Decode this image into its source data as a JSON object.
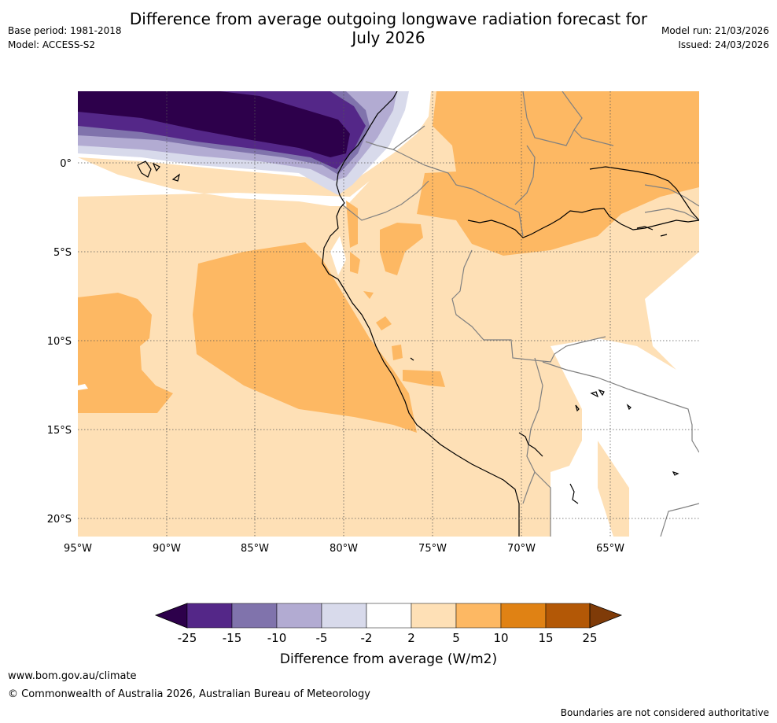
{
  "header": {
    "title_line1": "Difference from average outgoing longwave radiation forecast for",
    "title_line2": "July 2026",
    "base_period": "Base period: 1981-2018",
    "model": "Model: ACCESS-S2",
    "model_run": "Model run: 21/03/2026",
    "issued": "Issued: 24/03/2026"
  },
  "map": {
    "lon_labels": [
      "95°W",
      "90°W",
      "85°W",
      "80°W",
      "75°W",
      "70°W",
      "65°W"
    ],
    "lat_labels": [
      "0°",
      "5°S",
      "10°S",
      "15°S",
      "20°S"
    ]
  },
  "colorbar": {
    "tick_labels": [
      "-25",
      "-15",
      "-10",
      "-5",
      "-2",
      "2",
      "5",
      "10",
      "15",
      "25"
    ],
    "label": "Difference from average (W/m2)",
    "colors": [
      "#2d004b",
      "#542788",
      "#8073ac",
      "#b2abd2",
      "#d8daeb",
      "#ffffff",
      "#fee0b6",
      "#fdb863",
      "#e08214",
      "#b35806",
      "#7f3b08"
    ]
  },
  "footer": {
    "url": "www.bom.gov.au/climate",
    "copyright": "© Commonwealth of Australia 2026, Australian Bureau of Meteorology",
    "disclaimer": "Boundaries are not considered authoritative"
  }
}
